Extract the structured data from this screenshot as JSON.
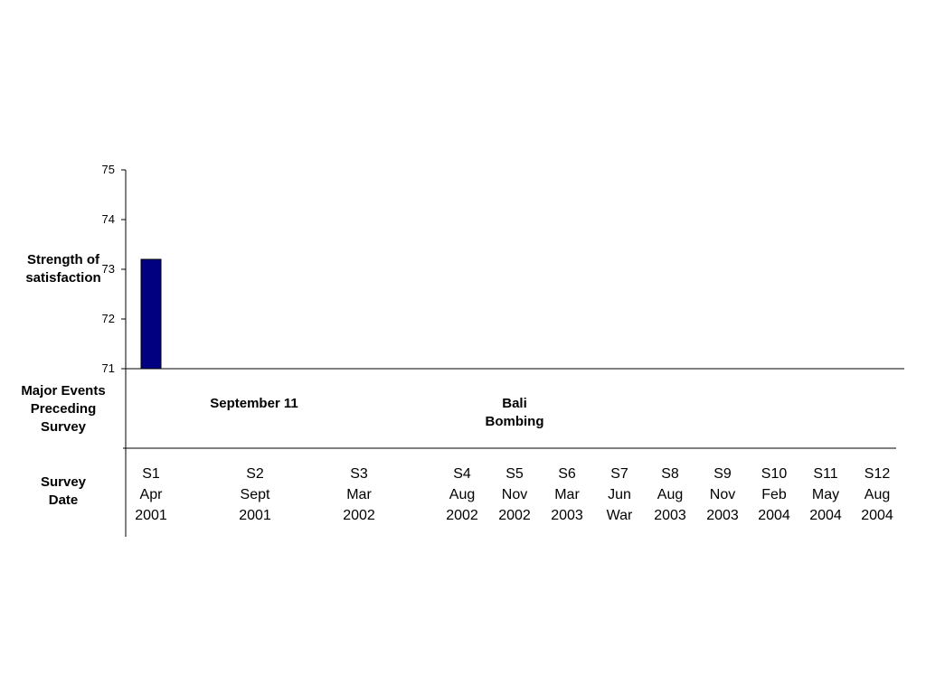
{
  "chart_data": {
    "type": "bar",
    "ylabel": "Strength of satisfaction",
    "ylim": [
      71,
      75
    ],
    "yticks": [
      "75",
      "74",
      "73",
      "72",
      "71"
    ],
    "categories": [
      "S1",
      "S2",
      "S3",
      "S4",
      "S5",
      "S6",
      "S7",
      "S8",
      "S9",
      "S10",
      "S11",
      "S12"
    ],
    "values": [
      73.2,
      null,
      null,
      null,
      null,
      null,
      null,
      null,
      null,
      null,
      null,
      null
    ],
    "bar_color": "#000080"
  },
  "rows": {
    "events_label": "Major Events Preceding Survey",
    "date_label": "Survey Date"
  },
  "events": [
    {
      "survey": "S2",
      "label": "September 11"
    },
    {
      "survey": "S5",
      "label": "Bali\nBombing"
    }
  ],
  "dates": [
    {
      "id": "S1",
      "month": "Apr",
      "year": "2001"
    },
    {
      "id": "S2",
      "month": "Sept",
      "year": "2001"
    },
    {
      "id": "S3",
      "month": "Mar",
      "year": "2002"
    },
    {
      "id": "S4",
      "month": "Aug",
      "year": "2002"
    },
    {
      "id": "S5",
      "month": "Nov",
      "year": "2002"
    },
    {
      "id": "S6",
      "month": "Mar",
      "year": "2003"
    },
    {
      "id": "S7",
      "month": "Jun",
      "year": "War"
    },
    {
      "id": "S8",
      "month": "Aug",
      "year": "2003"
    },
    {
      "id": "S9",
      "month": "Nov",
      "year": "2003"
    },
    {
      "id": "S10",
      "month": "Feb",
      "year": "2004"
    },
    {
      "id": "S11",
      "month": "May",
      "year": "2004"
    },
    {
      "id": "S12",
      "month": "Aug",
      "year": "2004"
    }
  ]
}
